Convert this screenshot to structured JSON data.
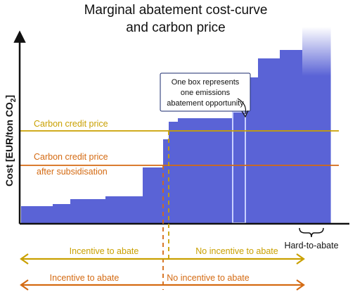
{
  "chart_data": {
    "type": "bar",
    "title_line1": "Marginal abatement cost-curve",
    "title_line2": "and carbon price",
    "ylabel_main": "Cost [EUR/ton CO",
    "ylabel_sub": "2",
    "ylabel_close": "]",
    "colors": {
      "bars": "#5a63d6",
      "carbon_price": "#c9a000",
      "subsidised_price": "#d46a12",
      "axis": "#111111"
    },
    "steps": [
      {
        "x0": 0,
        "x1": 45,
        "y": 25
      },
      {
        "x0": 45,
        "x1": 70,
        "y": 28
      },
      {
        "x0": 70,
        "x1": 120,
        "y": 35
      },
      {
        "x0": 120,
        "x1": 173,
        "y": 39
      },
      {
        "x0": 173,
        "x1": 202,
        "y": 80
      },
      {
        "x0": 202,
        "x1": 210,
        "y": 120
      },
      {
        "x0": 210,
        "x1": 223,
        "y": 145
      },
      {
        "x0": 223,
        "x1": 300,
        "y": 150
      },
      {
        "x0": 300,
        "x1": 320,
        "y": 160
      },
      {
        "x0": 320,
        "x1": 337,
        "y": 208
      },
      {
        "x0": 337,
        "x1": 368,
        "y": 235
      },
      {
        "x0": 368,
        "x1": 400,
        "y": 247
      },
      {
        "x0": 400,
        "x1": 440,
        "y": 280
      }
    ],
    "highlighted_step_index": 8,
    "carbon_credit_price": 132,
    "subsidised_price": 83,
    "labels": {
      "carbon_credit_price": "Carbon credit price",
      "subsidised_line1": "Carbon credit price",
      "subsidised_line2": "after subsidisation",
      "annotation_line1": "One box represents",
      "annotation_line2": "one emissions",
      "annotation_line3": "abatement opportunity",
      "hard_to_abate": "Hard-to-abate",
      "incentive_upper": "Incentive to abate",
      "no_incentive_upper": "No incentive to abate",
      "incentive_lower": "Incentive to abate",
      "no_incentive_lower": "No incentive to abate"
    }
  }
}
